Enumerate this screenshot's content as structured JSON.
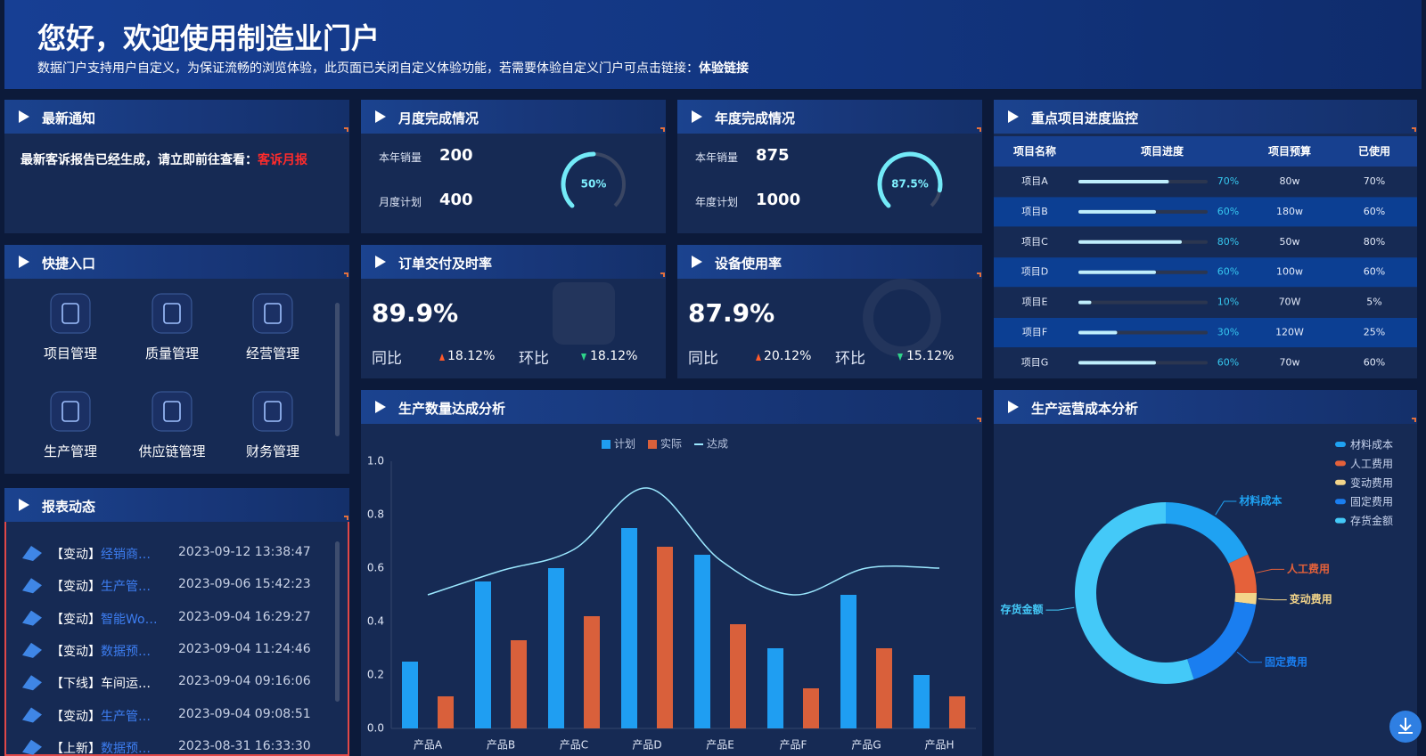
{
  "header": {
    "title": "您好，欢迎使用制造业门户",
    "subtitle": "数据门户支持用户自定义，为保证流畅的浏览体验，此页面已关闭自定义体验功能，若需要体验自定义门户可点击链接：",
    "link": "体验链接"
  },
  "notice": {
    "title": "最新通知",
    "text": "最新客诉报告已经生成，请立即前往查看：",
    "link": "客诉月报"
  },
  "monthly": {
    "title": "月度完成情况",
    "rows": [
      {
        "label": "本年销量",
        "value": 200
      },
      {
        "label": "月度计划",
        "value": 400
      }
    ],
    "gauge": 50,
    "gauge_label": "50%"
  },
  "yearly": {
    "title": "年度完成情况",
    "rows": [
      {
        "label": "本年销量",
        "value": 875
      },
      {
        "label": "年度计划",
        "value": 1000
      }
    ],
    "gauge": 87.5,
    "gauge_label": "87.5%"
  },
  "projects": {
    "title": "重点项目进度监控",
    "columns": [
      "项目名称",
      "项目进度",
      "项目预算",
      "已使用"
    ],
    "rows": [
      {
        "name": "项目A",
        "progress": 70,
        "progress_label": "70%",
        "budget": "80w",
        "used": "70%"
      },
      {
        "name": "项目B",
        "progress": 60,
        "progress_label": "60%",
        "budget": "180w",
        "used": "60%"
      },
      {
        "name": "项目C",
        "progress": 80,
        "progress_label": "80%",
        "budget": "50w",
        "used": "80%"
      },
      {
        "name": "项目D",
        "progress": 60,
        "progress_label": "60%",
        "budget": "100w",
        "used": "60%"
      },
      {
        "name": "项目E",
        "progress": 10,
        "progress_label": "10%",
        "budget": "70W",
        "used": "5%"
      },
      {
        "name": "项目F",
        "progress": 30,
        "progress_label": "30%",
        "budget": "120W",
        "used": "25%"
      },
      {
        "name": "项目G",
        "progress": 60,
        "progress_label": "60%",
        "budget": "70w",
        "used": "60%"
      }
    ]
  },
  "quick": {
    "title": "快捷入口",
    "items": [
      "项目管理",
      "质量管理",
      "经营管理",
      "生产管理",
      "供应链管理",
      "财务管理"
    ]
  },
  "order": {
    "title": "订单交付及时率",
    "value": "89.9%",
    "yoy_label": "同比",
    "yoy": "18.12%",
    "mom_label": "环比",
    "mom": "18.12%"
  },
  "equipment": {
    "title": "设备使用率",
    "value": "87.9%",
    "yoy_label": "同比",
    "yoy": "20.12%",
    "mom_label": "环比",
    "mom": "15.12%"
  },
  "reports": {
    "title": "报表动态",
    "items": [
      {
        "tag": "【变动】",
        "name": "经销商…",
        "time": "2023-09-12 13:38:47",
        "color": "#3d7ef2"
      },
      {
        "tag": "【变动】",
        "name": "生产管…",
        "time": "2023-09-06 15:42:23",
        "color": "#3d7ef2"
      },
      {
        "tag": "【变动】",
        "name": "智能Wo…",
        "time": "2023-09-04 16:29:27",
        "color": "#3d7ef2"
      },
      {
        "tag": "【变动】",
        "name": "数据预…",
        "time": "2023-09-04 11:24:46",
        "color": "#3d7ef2"
      },
      {
        "tag": "【下线】",
        "name": "车间运…",
        "time": "2023-09-04 09:16:06",
        "color": "#ffffff"
      },
      {
        "tag": "【变动】",
        "name": "生产管…",
        "time": "2023-09-04 09:08:51",
        "color": "#3d7ef2"
      },
      {
        "tag": "【上新】",
        "name": "数据预…",
        "time": "2023-08-31 16:33:30",
        "color": "#3d7ef2"
      }
    ]
  },
  "chart_data": [
    {
      "type": "bar",
      "title": "生产数量达成分析",
      "categories": [
        "产品A",
        "产品B",
        "产品C",
        "产品D",
        "产品E",
        "产品F",
        "产品G",
        "产品H"
      ],
      "series": [
        {
          "name": "计划",
          "color": "#1f9ef2",
          "values": [
            0.25,
            0.55,
            0.6,
            0.75,
            0.65,
            0.3,
            0.5,
            0.2
          ]
        },
        {
          "name": "实际",
          "color": "#d9603b",
          "values": [
            0.12,
            0.33,
            0.42,
            0.68,
            0.39,
            0.15,
            0.3,
            0.12
          ]
        },
        {
          "name": "达成",
          "type": "line",
          "color": "#9be8ff",
          "values": [
            0.5,
            0.59,
            0.67,
            0.9,
            0.63,
            0.5,
            0.6,
            0.6
          ]
        }
      ],
      "ylim": [
        0,
        1
      ],
      "yticks": [
        {
          "value": 0,
          "label": "0.0"
        },
        0.2,
        0.4,
        0.6,
        0.8,
        {
          "value": 1,
          "label": "1.0"
        }
      ],
      "grid": false,
      "legend": "top"
    },
    {
      "type": "pie",
      "title": "生产运营成本分析",
      "categories": [
        "材料成本",
        "人工费用",
        "变动费用",
        "固定费用",
        "存货金额"
      ],
      "values": [
        18,
        7,
        2,
        18,
        55
      ],
      "colors": [
        "#1fa2f2",
        "#e5613a",
        "#f3d58a",
        "#1a7ef0",
        "#44c9f8"
      ],
      "legend": "top-right",
      "donut": true
    }
  ]
}
